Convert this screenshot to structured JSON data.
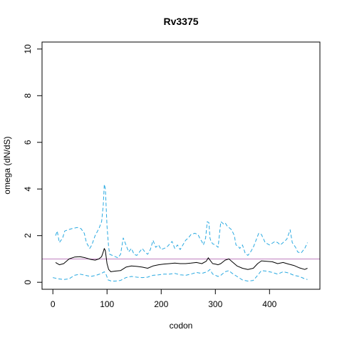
{
  "chart_data": {
    "type": "line",
    "title": "Rv3375",
    "xlabel": "codon",
    "ylabel": "omega (dN/dS)",
    "xlim": [
      -20,
      493
    ],
    "ylim": [
      -0.3,
      10.3
    ],
    "xticks": [
      0,
      100,
      200,
      300,
      400
    ],
    "yticks": [
      0,
      2,
      4,
      6,
      8,
      10
    ],
    "grid": false,
    "reference_line": {
      "y": 1,
      "color": "#c080c0"
    },
    "colors": {
      "estimate": "#000000",
      "bounds": "#29a9e1"
    },
    "series": [
      {
        "role": "estimate",
        "style": "solid",
        "x": [
          5,
          12,
          20,
          30,
          40,
          50,
          60,
          70,
          78,
          85,
          90,
          93,
          95,
          97,
          100,
          103,
          107,
          115,
          125,
          135,
          145,
          155,
          165,
          175,
          185,
          195,
          205,
          215,
          225,
          235,
          245,
          255,
          265,
          275,
          283,
          287,
          290,
          295,
          300,
          305,
          310,
          318,
          325,
          330,
          335,
          340,
          350,
          360,
          370,
          378,
          385,
          395,
          405,
          415,
          425,
          435,
          445,
          455,
          465,
          470
        ],
        "y": [
          0.85,
          0.75,
          0.8,
          1.0,
          1.08,
          1.1,
          1.05,
          0.98,
          0.95,
          1.0,
          1.1,
          1.3,
          1.45,
          1.35,
          0.8,
          0.55,
          0.45,
          0.48,
          0.5,
          0.65,
          0.7,
          0.68,
          0.65,
          0.6,
          0.7,
          0.75,
          0.78,
          0.8,
          0.82,
          0.8,
          0.8,
          0.82,
          0.85,
          0.8,
          0.9,
          1.05,
          0.95,
          0.8,
          0.78,
          0.75,
          0.8,
          0.95,
          1.0,
          0.9,
          0.8,
          0.7,
          0.6,
          0.55,
          0.6,
          0.8,
          0.92,
          0.9,
          0.88,
          0.8,
          0.85,
          0.78,
          0.72,
          0.62,
          0.55,
          0.6
        ]
      },
      {
        "role": "upper-bound",
        "style": "dashed",
        "x": [
          5,
          8,
          12,
          18,
          22,
          28,
          35,
          45,
          52,
          58,
          62,
          68,
          72,
          78,
          85,
          90,
          93,
          95,
          97,
          100,
          103,
          105,
          110,
          115,
          120,
          125,
          130,
          135,
          140,
          145,
          150,
          155,
          160,
          165,
          170,
          175,
          180,
          185,
          190,
          195,
          200,
          210,
          220,
          225,
          230,
          235,
          240,
          245,
          250,
          255,
          262,
          268,
          272,
          275,
          278,
          282,
          285,
          288,
          290,
          292,
          295,
          300,
          305,
          310,
          315,
          318,
          322,
          325,
          330,
          335,
          338,
          342,
          345,
          350,
          355,
          360,
          365,
          370,
          375,
          380,
          385,
          392,
          400,
          410,
          415,
          420,
          425,
          432,
          438,
          442,
          448,
          452,
          458,
          465,
          470
        ],
        "y": [
          2.0,
          2.2,
          1.7,
          1.9,
          2.2,
          2.25,
          2.3,
          2.35,
          2.3,
          2.1,
          1.7,
          1.45,
          1.6,
          2.0,
          2.3,
          2.6,
          3.3,
          4.2,
          4.0,
          2.4,
          1.5,
          1.2,
          1.15,
          1.1,
          1.05,
          1.2,
          1.9,
          1.6,
          1.3,
          1.45,
          1.2,
          1.15,
          1.3,
          1.45,
          1.3,
          1.2,
          1.4,
          1.8,
          1.5,
          1.6,
          1.4,
          1.5,
          1.75,
          1.45,
          1.6,
          1.4,
          1.6,
          1.8,
          1.9,
          2.05,
          2.1,
          2.05,
          1.85,
          1.75,
          1.6,
          1.9,
          2.6,
          2.55,
          1.9,
          1.75,
          1.65,
          1.6,
          1.5,
          2.6,
          2.5,
          2.55,
          2.4,
          2.35,
          2.25,
          2.0,
          1.6,
          1.55,
          1.45,
          1.6,
          1.25,
          1.15,
          1.3,
          1.5,
          1.8,
          2.1,
          2.05,
          1.7,
          1.6,
          1.75,
          1.7,
          1.6,
          1.7,
          1.85,
          2.25,
          1.7,
          1.5,
          1.3,
          1.25,
          1.45,
          1.7
        ]
      },
      {
        "role": "lower-bound",
        "style": "dashed",
        "x": [
          0,
          10,
          20,
          30,
          40,
          50,
          60,
          70,
          80,
          90,
          95,
          98,
          102,
          108,
          115,
          125,
          135,
          145,
          155,
          165,
          175,
          185,
          195,
          205,
          215,
          225,
          235,
          245,
          255,
          265,
          275,
          285,
          290,
          295,
          300,
          305,
          310,
          318,
          325,
          330,
          340,
          350,
          360,
          370,
          378,
          385,
          395,
          405,
          415,
          425,
          435,
          445,
          455,
          465,
          470
        ],
        "y": [
          0.2,
          0.15,
          0.12,
          0.15,
          0.3,
          0.35,
          0.3,
          0.25,
          0.3,
          0.38,
          0.45,
          0.35,
          0.1,
          0.05,
          0.05,
          0.08,
          0.2,
          0.25,
          0.22,
          0.2,
          0.22,
          0.3,
          0.32,
          0.35,
          0.35,
          0.38,
          0.32,
          0.3,
          0.35,
          0.42,
          0.38,
          0.45,
          0.55,
          0.35,
          0.3,
          0.25,
          0.3,
          0.45,
          0.5,
          0.4,
          0.25,
          0.1,
          0.05,
          0.08,
          0.3,
          0.5,
          0.48,
          0.42,
          0.35,
          0.45,
          0.4,
          0.3,
          0.25,
          0.15,
          0.12
        ]
      }
    ]
  }
}
